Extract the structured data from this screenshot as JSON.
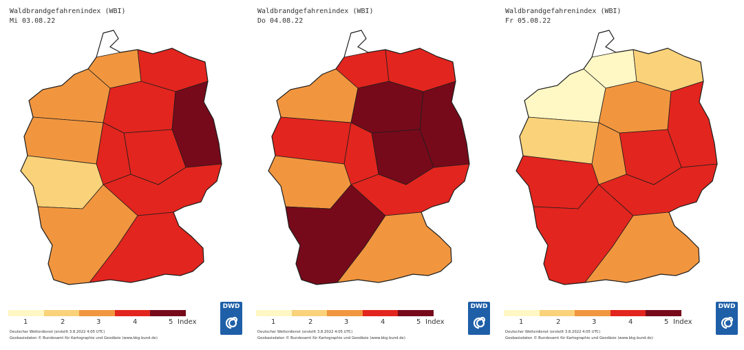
{
  "colors": {
    "level1": "#fff7c4",
    "level2": "#f9d27a",
    "level3": "#f1963f",
    "level4": "#e2251e",
    "level5": "#760a1a",
    "border": "#1d1d1d",
    "logo": "#1f5fa8"
  },
  "panels": [
    {
      "title": "Waldbrandgefahrenindex (WBI)",
      "date": "Mi 03.08.22",
      "map_colors": [
        "#f1963f",
        "#e2251e",
        "#f1963f",
        "#e2251e",
        "#760a1a",
        "#e2251e",
        "#f1963f",
        "#e2251e",
        "#f9d27a",
        "#e2251e",
        "#f1963f",
        "#e2251e"
      ]
    },
    {
      "title": "Waldbrandgefahrenindex (WBI)",
      "date": "Do 04.08.22",
      "map_colors": [
        "#e2251e",
        "#e2251e",
        "#f1963f",
        "#760a1a",
        "#760a1a",
        "#760a1a",
        "#e2251e",
        "#e2251e",
        "#f1963f",
        "#e2251e",
        "#760a1a",
        "#f1963f"
      ]
    },
    {
      "title": "Waldbrandgefahrenindex (WBI)",
      "date": "Fr 05.08.22",
      "map_colors": [
        "#fff7c4",
        "#f9d27a",
        "#fff7c4",
        "#f1963f",
        "#e2251e",
        "#e2251e",
        "#f9d27a",
        "#f1963f",
        "#e2251e",
        "#e2251e",
        "#e2251e",
        "#f1963f"
      ]
    }
  ],
  "legend": {
    "ticks": [
      "1",
      "2",
      "3",
      "4",
      "5"
    ],
    "unit": "Index"
  },
  "footer": {
    "line1": "Deutscher Wetterdienst (erstellt 3.8.2022 4:05 UTC)",
    "line2": "Geobasisdaten © Bundesamt für Kartographie und Geodäsie (www.bkg.bund.de)"
  },
  "logo": {
    "text": "DWD"
  }
}
